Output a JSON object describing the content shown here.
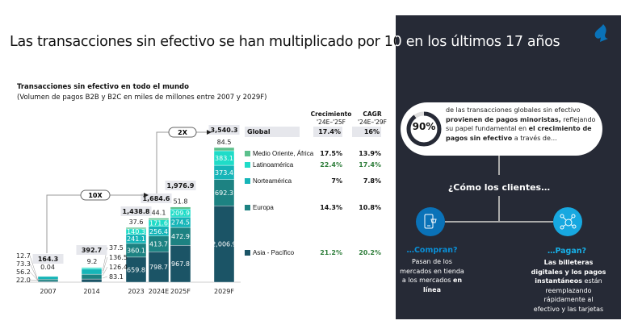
{
  "title": "Las transacciones sin efectivo se han multiplicado por 10 en los últimos 17 años",
  "chart_data": {
    "type": "bar",
    "stacked": true,
    "title": "Transacciones sin efectivo en todo el mundo",
    "subtitle": "(Volumen de pagos B2B y B2C en miles de millones entre 2007 y 2029F)",
    "categories": [
      "2007",
      "2014",
      "2023",
      "2024E",
      "2025F",
      "2029F"
    ],
    "totals": [
      "164.3",
      "392.7",
      "1,438.8",
      "1,684.6",
      "1,976.9",
      "3,540.3"
    ],
    "series": [
      {
        "name": "Asia - Pacífico",
        "color": "#1b5466",
        "values": [
          22.0,
          83.1,
          659.8,
          798.7,
          967.8,
          2006.9
        ],
        "labels": [
          "22.0",
          "83.1",
          "659.8",
          "798.7",
          "967.8",
          "2,006.9"
        ],
        "growth": "21.2%",
        "cagr": "20.2%",
        "highlight": true
      },
      {
        "name": "Europa",
        "color": "#1d8282",
        "values": [
          56.2,
          126.4,
          360.1,
          413.7,
          472.9,
          692.3
        ],
        "labels": [
          "56.2",
          "126.4",
          "360.1",
          "413.7",
          "472.9",
          "692.3"
        ],
        "growth": "14.3%",
        "cagr": "10.8%",
        "highlight": false
      },
      {
        "name": "Norteamérica",
        "color": "#16b5b8",
        "values": [
          73.3,
          136.5,
          241.1,
          256.4,
          274.5,
          373.4
        ],
        "labels": [
          "73.3",
          "136.5",
          "241.1",
          "256.4",
          "274.5",
          "373.4"
        ],
        "growth": "7%",
        "cagr": "7.8%",
        "highlight": false
      },
      {
        "name": "Latinoamérica",
        "color": "#1fdcc8",
        "values": [
          12.7,
          37.5,
          140.3,
          171.6,
          209.9,
          383.1
        ],
        "labels": [
          "12.7",
          "37.5",
          "140.3",
          "171.6",
          "209.9",
          "383.1"
        ],
        "growth": "22.4%",
        "cagr": "17.4%",
        "highlight": true
      },
      {
        "name": "Medio Oriente, África",
        "color": "#5cc08c",
        "values": [
          0.04,
          9.2,
          37.6,
          44.1,
          51.8,
          84.5
        ],
        "labels": [
          "0.04",
          "9.2",
          "37.6",
          "44.1",
          "51.8",
          "84.5"
        ],
        "growth": "17.5%",
        "cagr": "13.9%",
        "highlight": false
      }
    ],
    "annotations": [
      {
        "label": "10X",
        "from": "2007",
        "to": "2024E"
      },
      {
        "label": "2X",
        "from": "2024E",
        "to": "2029F"
      }
    ],
    "global": {
      "label": "Global",
      "growth": "17.4%",
      "cagr": "16%"
    },
    "col_headers": {
      "growth": "Crecimiento",
      "growth_period": "'24E–'25F",
      "cagr": "CAGR",
      "cagr_period": "'24E–'29F"
    }
  },
  "panel": {
    "percent": "90%",
    "percent_value": 90,
    "t1": "de las transacciones globales sin efectivo ",
    "t2": "provienen de pagos minoristas,",
    "t3": " reflejando su papel fundamental en ",
    "t4": "el crecimiento de pagos sin efectivo",
    "t5": " a través de…",
    "question": "¿Cómo los clientes…",
    "buy": {
      "title": "…Compran?",
      "text": "Pasan de los mercados en tienda a los mercados ",
      "bold": "en línea"
    },
    "pay": {
      "title": "…Pagan?",
      "bold": "Las billeteras digitales y los pagos instantáneos",
      "text": " están reemplazando rápidamente al efectivo y las tarjetas"
    },
    "colors": {
      "bg": "#262a36",
      "buy": "#0a72b8",
      "pay": "#17a8e0"
    }
  }
}
